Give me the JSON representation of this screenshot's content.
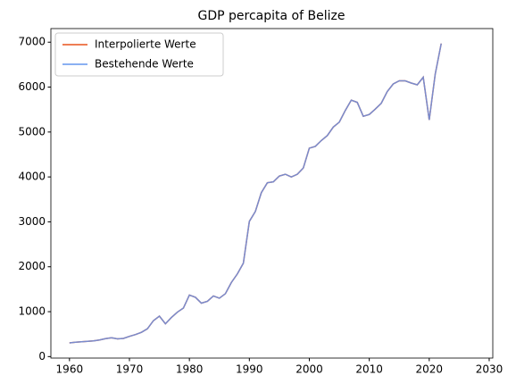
{
  "chart_data": {
    "type": "line",
    "title": "GDP percapita of Belize",
    "x": [
      1960,
      1961,
      1962,
      1963,
      1964,
      1965,
      1966,
      1967,
      1968,
      1969,
      1970,
      1971,
      1972,
      1973,
      1974,
      1975,
      1976,
      1977,
      1978,
      1979,
      1980,
      1981,
      1982,
      1983,
      1984,
      1985,
      1986,
      1987,
      1988,
      1989,
      1990,
      1991,
      1992,
      1993,
      1994,
      1995,
      1996,
      1997,
      1998,
      1999,
      2000,
      2001,
      2002,
      2003,
      2004,
      2005,
      2006,
      2007,
      2008,
      2009,
      2010,
      2011,
      2012,
      2013,
      2014,
      2015,
      2016,
      2017,
      2018,
      2019,
      2020,
      2021,
      2022
    ],
    "series": [
      {
        "name": "Interpolierte Werte",
        "color": "#e8541c",
        "values": [
          305,
          320,
          330,
          340,
          350,
          370,
          400,
          420,
          395,
          405,
          450,
          490,
          540,
          620,
          800,
          900,
          730,
          870,
          990,
          1080,
          1370,
          1320,
          1190,
          1230,
          1350,
          1300,
          1400,
          1650,
          1840,
          2080,
          3010,
          3230,
          3650,
          3870,
          3890,
          4020,
          4060,
          4000,
          4060,
          4200,
          4640,
          4680,
          4810,
          4920,
          5110,
          5220,
          5480,
          5710,
          5660,
          5350,
          5390,
          5510,
          5640,
          5900,
          6070,
          6140,
          6140,
          6090,
          6050,
          6220,
          5270,
          6290,
          6970
        ]
      },
      {
        "name": "Bestehende Werte",
        "color": "#6495ed",
        "values": [
          305,
          320,
          330,
          340,
          350,
          370,
          400,
          420,
          395,
          405,
          450,
          490,
          540,
          620,
          800,
          900,
          730,
          870,
          990,
          1080,
          1370,
          1320,
          1190,
          1230,
          1350,
          1300,
          1400,
          1650,
          1840,
          2080,
          3010,
          3230,
          3650,
          3870,
          3890,
          4020,
          4060,
          4000,
          4060,
          4200,
          4640,
          4680,
          4810,
          4920,
          5110,
          5220,
          5480,
          5710,
          5660,
          5350,
          5390,
          5510,
          5640,
          5900,
          6070,
          6140,
          6140,
          6090,
          6050,
          6220,
          5270,
          6290,
          6970
        ]
      }
    ],
    "xlim": [
      1956.9,
      2030.6
    ],
    "ylim": [
      -33,
      7303
    ],
    "xticks": [
      1960,
      1970,
      1980,
      1990,
      2000,
      2010,
      2020,
      2030
    ],
    "yticks": [
      0,
      1000,
      2000,
      3000,
      4000,
      5000,
      6000,
      7000
    ],
    "legend": "upper left"
  }
}
